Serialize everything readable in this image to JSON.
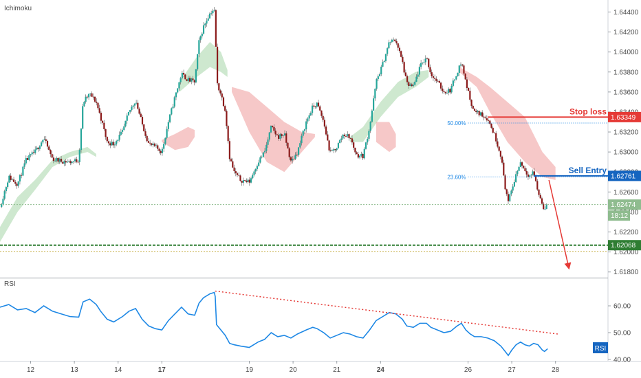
{
  "header": {
    "indicator_label": "Ichimoku"
  },
  "rsi_panel": {
    "label": "RSI",
    "badge": "RSI"
  },
  "colors": {
    "bull": "#26a69a",
    "bear": "#8b1a1a",
    "cloud_bull": "#a5d6a7",
    "cloud_bear": "#ef9a9a",
    "stop_loss": "#e53935",
    "sell_entry": "#1565c0",
    "current_price": "#8fbc8f",
    "support": "#2e7d32",
    "rsi_line": "#1e88e5",
    "rsi_trend": "#e53935"
  },
  "chart_data": {
    "type": "candlestick",
    "x_ticks": [
      {
        "label": "12",
        "x": 12.0
      },
      {
        "label": "13",
        "x": 13.0
      },
      {
        "label": "14",
        "x": 14.0
      },
      {
        "label": "17",
        "x": 15.0
      },
      {
        "label": "19",
        "x": 17.0
      },
      {
        "label": "20",
        "x": 18.0
      },
      {
        "label": "21",
        "x": 19.0
      },
      {
        "label": "24",
        "x": 20.0
      },
      {
        "label": "26",
        "x": 22.0
      },
      {
        "label": "27",
        "x": 23.0
      },
      {
        "label": "28",
        "x": 24.0
      }
    ],
    "xlim": [
      11.3,
      25.2
    ],
    "price_axis": {
      "ylim": [
        1.6175,
        1.6452
      ],
      "ticks": [
        "1.64400",
        "1.64200",
        "1.64000",
        "1.63800",
        "1.63600",
        "1.63400",
        "1.63200",
        "1.63000",
        "1.62800",
        "1.62600",
        "1.62400",
        "1.62200",
        "1.62000",
        "1.61800"
      ]
    },
    "rsi_axis": {
      "ylim": [
        39.5,
        70.0
      ],
      "ticks": [
        "60.00",
        "50.00",
        "40.00"
      ]
    },
    "levels": {
      "stop_loss": {
        "label": "Stop loss",
        "price": 1.63349,
        "price_label": "1.63349"
      },
      "sell_entry": {
        "label": "Sell Entry",
        "price": 1.62761,
        "price_label": "1.62761"
      },
      "current": {
        "price": 1.62474,
        "price_label": "1.62474",
        "countdown": "18:12"
      },
      "support": {
        "price": 1.62068,
        "price_label": "1.62068"
      },
      "fib_50": {
        "label": "50.00%",
        "price": 1.6329
      },
      "fib_236": {
        "label": "23.60%",
        "price": 1.6275
      }
    },
    "price_path": [
      [
        11.3,
        1.6245
      ],
      [
        11.5,
        1.6275
      ],
      [
        11.7,
        1.6268
      ],
      [
        11.9,
        1.6292
      ],
      [
        12.1,
        1.63
      ],
      [
        12.3,
        1.6314
      ],
      [
        12.5,
        1.6293
      ],
      [
        12.7,
        1.6291
      ],
      [
        12.9,
        1.629
      ],
      [
        13.1,
        1.6292
      ],
      [
        13.2,
        1.635
      ],
      [
        13.35,
        1.6358
      ],
      [
        13.5,
        1.635
      ],
      [
        13.6,
        1.6335
      ],
      [
        13.75,
        1.631
      ],
      [
        13.9,
        1.6308
      ],
      [
        14.1,
        1.632
      ],
      [
        14.25,
        1.634
      ],
      [
        14.4,
        1.6352
      ],
      [
        14.55,
        1.6328
      ],
      [
        14.7,
        1.6308
      ],
      [
        14.85,
        1.6305
      ],
      [
        15.0,
        1.63
      ],
      [
        15.15,
        1.633
      ],
      [
        15.3,
        1.6355
      ],
      [
        15.45,
        1.6378
      ],
      [
        15.6,
        1.6372
      ],
      [
        15.75,
        1.637
      ],
      [
        15.85,
        1.641
      ],
      [
        15.95,
        1.6425
      ],
      [
        16.05,
        1.6435
      ],
      [
        16.15,
        1.6442
      ],
      [
        16.22,
        1.644
      ],
      [
        16.25,
        1.637
      ],
      [
        16.35,
        1.6358
      ],
      [
        16.45,
        1.6342
      ],
      [
        16.55,
        1.6295
      ],
      [
        16.65,
        1.628
      ],
      [
        16.8,
        1.6272
      ],
      [
        17.0,
        1.627
      ],
      [
        17.2,
        1.629
      ],
      [
        17.35,
        1.63
      ],
      [
        17.5,
        1.6325
      ],
      [
        17.65,
        1.6315
      ],
      [
        17.8,
        1.6318
      ],
      [
        17.95,
        1.629
      ],
      [
        18.1,
        1.63
      ],
      [
        18.3,
        1.633
      ],
      [
        18.45,
        1.6345
      ],
      [
        18.55,
        1.6348
      ],
      [
        18.7,
        1.633
      ],
      [
        18.85,
        1.6298
      ],
      [
        19.0,
        1.6305
      ],
      [
        19.15,
        1.6318
      ],
      [
        19.3,
        1.6315
      ],
      [
        19.45,
        1.6297
      ],
      [
        19.6,
        1.6296
      ],
      [
        19.75,
        1.6325
      ],
      [
        19.9,
        1.637
      ],
      [
        20.05,
        1.6388
      ],
      [
        20.2,
        1.641
      ],
      [
        20.35,
        1.6412
      ],
      [
        20.5,
        1.639
      ],
      [
        20.6,
        1.6368
      ],
      [
        20.75,
        1.6365
      ],
      [
        20.9,
        1.6385
      ],
      [
        21.05,
        1.6395
      ],
      [
        21.15,
        1.6378
      ],
      [
        21.3,
        1.637
      ],
      [
        21.45,
        1.636
      ],
      [
        21.6,
        1.6362
      ],
      [
        21.75,
        1.638
      ],
      [
        21.85,
        1.639
      ],
      [
        21.95,
        1.637
      ],
      [
        22.05,
        1.6352
      ],
      [
        22.15,
        1.634
      ],
      [
        22.3,
        1.6338
      ],
      [
        22.45,
        1.6333
      ],
      [
        22.6,
        1.6318
      ],
      [
        22.75,
        1.6297
      ],
      [
        22.85,
        1.6265
      ],
      [
        22.92,
        1.625
      ],
      [
        23.0,
        1.6262
      ],
      [
        23.1,
        1.6278
      ],
      [
        23.2,
        1.629
      ],
      [
        23.3,
        1.6282
      ],
      [
        23.4,
        1.6276
      ],
      [
        23.5,
        1.628
      ],
      [
        23.6,
        1.626
      ],
      [
        23.7,
        1.6248
      ],
      [
        23.75,
        1.6242
      ],
      [
        23.82,
        1.6247
      ]
    ],
    "cloud_bull": [
      [
        [
          11.3,
          1.621,
          1.6225
        ],
        [
          11.7,
          1.624,
          1.6255
        ],
        [
          12.1,
          1.6262,
          1.6272
        ],
        [
          12.5,
          1.6285,
          1.6292
        ],
        [
          12.9,
          1.6295,
          1.63
        ],
        [
          13.3,
          1.63,
          1.6305
        ],
        [
          13.5,
          1.6295,
          1.6298
        ]
      ],
      [
        [
          15.4,
          1.636,
          1.637
        ],
        [
          15.8,
          1.6375,
          1.6395
        ],
        [
          16.1,
          1.6385,
          1.641
        ],
        [
          16.35,
          1.638,
          1.64
        ],
        [
          16.5,
          1.6375,
          1.6382
        ]
      ],
      [
        [
          19.3,
          1.631,
          1.6315
        ],
        [
          19.6,
          1.631,
          1.6325
        ],
        [
          20.0,
          1.6335,
          1.635
        ],
        [
          20.4,
          1.6355,
          1.637
        ],
        [
          20.8,
          1.6365,
          1.638
        ],
        [
          21.1,
          1.6375,
          1.6382
        ]
      ]
    ],
    "cloud_bear": [
      [
        [
          15.0,
          1.631,
          1.6312
        ],
        [
          15.3,
          1.6302,
          1.6318
        ],
        [
          15.6,
          1.6305,
          1.6325
        ],
        [
          15.75,
          1.6315,
          1.6322
        ]
      ],
      [
        [
          16.6,
          1.636,
          1.6365
        ],
        [
          17.0,
          1.632,
          1.636
        ],
        [
          17.4,
          1.629,
          1.6345
        ],
        [
          17.8,
          1.628,
          1.633
        ],
        [
          18.2,
          1.63,
          1.632
        ],
        [
          18.5,
          1.6315,
          1.6318
        ]
      ],
      [
        [
          19.9,
          1.631,
          1.633
        ],
        [
          20.2,
          1.63,
          1.633
        ],
        [
          20.35,
          1.6305,
          1.6318
        ]
      ],
      [
        [
          21.8,
          1.638,
          1.6385
        ],
        [
          22.2,
          1.6365,
          1.6375
        ],
        [
          22.5,
          1.634,
          1.6365
        ],
        [
          22.9,
          1.631,
          1.635
        ],
        [
          23.3,
          1.629,
          1.6335
        ],
        [
          23.7,
          1.6275,
          1.63
        ],
        [
          24.0,
          1.6272,
          1.6285
        ]
      ]
    ],
    "rsi": [
      [
        11.3,
        59.5
      ],
      [
        11.5,
        60.5
      ],
      [
        11.7,
        58.5
      ],
      [
        11.9,
        59.0
      ],
      [
        12.1,
        57.5
      ],
      [
        12.3,
        60.0
      ],
      [
        12.5,
        58.0
      ],
      [
        12.7,
        57.0
      ],
      [
        12.9,
        56.0
      ],
      [
        13.1,
        55.8
      ],
      [
        13.2,
        61.5
      ],
      [
        13.35,
        62.5
      ],
      [
        13.5,
        60.5
      ],
      [
        13.6,
        58.0
      ],
      [
        13.75,
        55.0
      ],
      [
        13.9,
        54.0
      ],
      [
        14.1,
        56.0
      ],
      [
        14.25,
        58.0
      ],
      [
        14.4,
        59.0
      ],
      [
        14.55,
        55.0
      ],
      [
        14.7,
        52.5
      ],
      [
        14.85,
        51.5
      ],
      [
        15.0,
        51.0
      ],
      [
        15.15,
        54.5
      ],
      [
        15.3,
        57.0
      ],
      [
        15.45,
        59.5
      ],
      [
        15.6,
        57.0
      ],
      [
        15.75,
        56.5
      ],
      [
        15.85,
        61.0
      ],
      [
        15.95,
        63.0
      ],
      [
        16.1,
        64.5
      ],
      [
        16.2,
        65.0
      ],
      [
        16.22,
        63.5
      ],
      [
        16.25,
        53.0
      ],
      [
        16.35,
        51.0
      ],
      [
        16.45,
        49.0
      ],
      [
        16.55,
        46.0
      ],
      [
        16.65,
        45.5
      ],
      [
        16.8,
        45.0
      ],
      [
        17.0,
        44.5
      ],
      [
        17.2,
        46.5
      ],
      [
        17.35,
        47.5
      ],
      [
        17.5,
        50.0
      ],
      [
        17.65,
        48.5
      ],
      [
        17.8,
        49.0
      ],
      [
        17.95,
        48.0
      ],
      [
        18.1,
        49.5
      ],
      [
        18.3,
        51.0
      ],
      [
        18.45,
        52.0
      ],
      [
        18.55,
        51.5
      ],
      [
        18.7,
        50.0
      ],
      [
        18.85,
        48.0
      ],
      [
        19.0,
        49.0
      ],
      [
        19.15,
        50.0
      ],
      [
        19.3,
        49.5
      ],
      [
        19.45,
        48.5
      ],
      [
        19.6,
        48.0
      ],
      [
        19.75,
        51.0
      ],
      [
        19.9,
        54.5
      ],
      [
        20.05,
        56.0
      ],
      [
        20.2,
        57.5
      ],
      [
        20.35,
        57.0
      ],
      [
        20.5,
        55.0
      ],
      [
        20.6,
        52.5
      ],
      [
        20.75,
        52.0
      ],
      [
        20.9,
        53.5
      ],
      [
        21.05,
        53.5
      ],
      [
        21.15,
        52.0
      ],
      [
        21.3,
        51.0
      ],
      [
        21.45,
        50.0
      ],
      [
        21.6,
        50.5
      ],
      [
        21.75,
        52.5
      ],
      [
        21.85,
        53.5
      ],
      [
        21.95,
        51.0
      ],
      [
        22.05,
        49.5
      ],
      [
        22.15,
        48.5
      ],
      [
        22.3,
        48.5
      ],
      [
        22.45,
        48.0
      ],
      [
        22.6,
        47.0
      ],
      [
        22.75,
        45.0
      ],
      [
        22.85,
        43.0
      ],
      [
        22.92,
        41.5
      ],
      [
        23.0,
        43.5
      ],
      [
        23.1,
        45.5
      ],
      [
        23.2,
        46.5
      ],
      [
        23.3,
        45.5
      ],
      [
        23.4,
        45.0
      ],
      [
        23.5,
        46.0
      ],
      [
        23.6,
        45.5
      ],
      [
        23.7,
        43.5
      ],
      [
        23.75,
        43.0
      ],
      [
        23.82,
        44.0
      ]
    ],
    "rsi_trendline": [
      [
        16.22,
        65.5
      ],
      [
        24.05,
        49.5
      ]
    ],
    "projection_arrow": [
      [
        23.85,
        1.6272
      ],
      [
        24.3,
        1.6185
      ]
    ]
  }
}
